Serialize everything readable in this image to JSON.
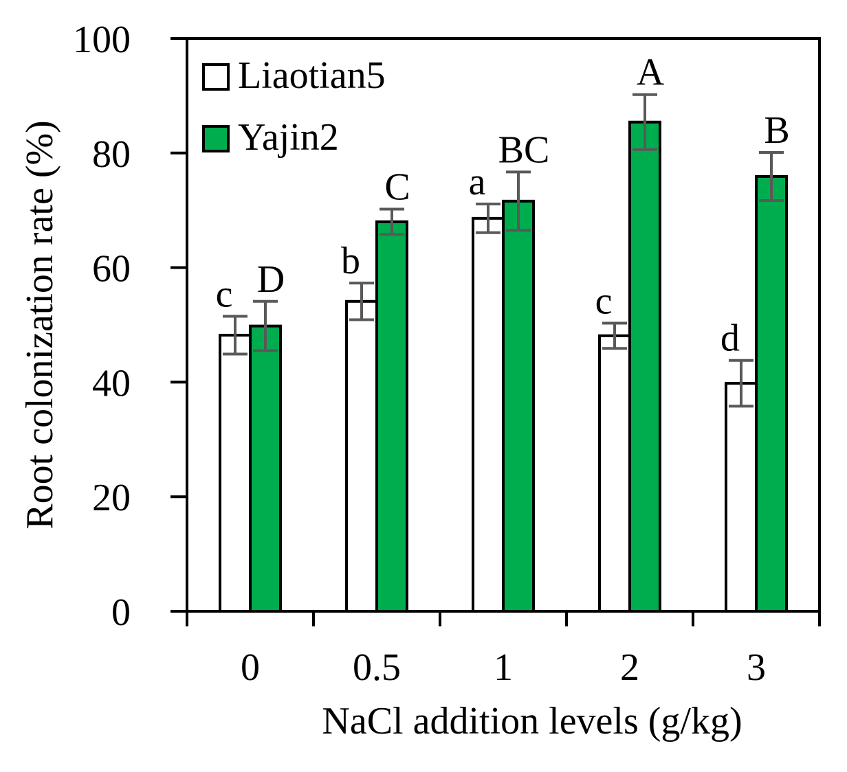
{
  "chart_data": {
    "type": "bar",
    "title": "",
    "xlabel": "NaCl addition levels (g/kg)",
    "ylabel": "Root colonization rate (%)",
    "categories": [
      "0",
      "0.5",
      "1",
      "2",
      "3"
    ],
    "ylim": [
      0,
      100
    ],
    "yticks": [
      0,
      20,
      40,
      60,
      80,
      100
    ],
    "grid": false,
    "legend_position": "top-left",
    "series": [
      {
        "name": "Liaotian5",
        "color": "#ffffff",
        "values": [
          48.2,
          54.1,
          68.6,
          48.1,
          39.8
        ],
        "errors": [
          3.3,
          3.2,
          2.5,
          2.2,
          4.0
        ],
        "labels": [
          "c",
          "b",
          "a",
          "c",
          "d"
        ]
      },
      {
        "name": "Yajin2",
        "color": "#00ad4e",
        "values": [
          49.8,
          68.0,
          71.6,
          85.4,
          75.9
        ],
        "errors": [
          4.3,
          2.2,
          5.1,
          4.8,
          4.2
        ],
        "labels": [
          "D",
          "C",
          "BC",
          "A",
          "B"
        ]
      }
    ]
  }
}
